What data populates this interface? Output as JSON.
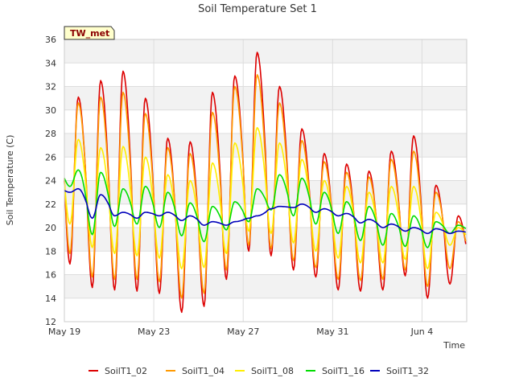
{
  "chart_data": {
    "type": "line",
    "title": "Soil Temperature Set 1",
    "site_tag": "TW_met",
    "xlabel": "Time",
    "ylabel": "Soil Temperature (C)",
    "ylim": [
      12,
      36
    ],
    "y_ticks": [
      12,
      14,
      16,
      18,
      20,
      22,
      24,
      26,
      28,
      30,
      32,
      34,
      36
    ],
    "xlim": [
      "2024-05-19",
      "2024-06-06"
    ],
    "x_ticks": [
      {
        "date": "2024-05-19",
        "label": "May 19"
      },
      {
        "date": "2024-05-23",
        "label": "May 23"
      },
      {
        "date": "2024-05-27",
        "label": "May 27"
      },
      {
        "date": "2024-05-31",
        "label": "May 31"
      },
      {
        "date": "2024-06-04",
        "label": "Jun 4"
      }
    ],
    "grid": true,
    "legend_position": "bottom",
    "days": [
      "2024-05-19",
      "2024-05-20",
      "2024-05-21",
      "2024-05-22",
      "2024-05-23",
      "2024-05-24",
      "2024-05-25",
      "2024-05-26",
      "2024-05-27",
      "2024-05-28",
      "2024-05-29",
      "2024-05-30",
      "2024-05-31",
      "2024-06-01",
      "2024-06-02",
      "2024-06-03",
      "2024-06-04",
      "2024-06-05"
    ],
    "series": [
      {
        "name": "SoilT1_02",
        "color": "#dd0000",
        "daily_max": [
          31.1,
          32.5,
          33.3,
          31.0,
          27.6,
          27.3,
          31.5,
          32.9,
          34.9,
          32.0,
          28.4,
          26.3,
          25.4,
          24.8,
          26.5,
          27.8,
          23.6,
          21.0
        ],
        "daily_min": [
          16.9,
          14.9,
          14.7,
          14.6,
          14.4,
          12.8,
          13.3,
          15.6,
          18.0,
          17.6,
          16.4,
          15.8,
          14.7,
          14.6,
          14.7,
          15.9,
          14.0,
          15.2
        ]
      },
      {
        "name": "SoilT1_04",
        "color": "#ff9900",
        "daily_max": [
          30.6,
          31.1,
          31.5,
          29.7,
          26.8,
          26.3,
          29.8,
          32.0,
          33.0,
          30.6,
          27.4,
          25.6,
          24.7,
          24.3,
          25.8,
          26.5,
          23.0,
          20.5
        ],
        "daily_min": [
          17.8,
          15.8,
          15.6,
          15.6,
          15.4,
          14.0,
          14.4,
          16.4,
          18.5,
          18.2,
          17.2,
          16.6,
          15.6,
          15.5,
          15.6,
          16.4,
          15.0,
          16.5
        ]
      },
      {
        "name": "SoilT1_08",
        "color": "#ffee00",
        "daily_max": [
          27.5,
          26.8,
          26.9,
          26.0,
          24.5,
          24.0,
          25.5,
          27.2,
          28.5,
          27.2,
          25.8,
          24.0,
          23.5,
          23.0,
          23.5,
          23.5,
          21.3,
          20.0
        ],
        "daily_min": [
          20.3,
          18.3,
          17.8,
          17.6,
          17.4,
          16.5,
          16.6,
          17.8,
          19.7,
          19.5,
          18.7,
          18.0,
          17.4,
          17.0,
          17.0,
          17.3,
          16.5,
          18.5
        ]
      },
      {
        "name": "SoilT1_16",
        "color": "#00dd00",
        "daily_max": [
          24.9,
          24.7,
          23.3,
          23.5,
          23.0,
          22.1,
          21.8,
          22.2,
          23.3,
          24.5,
          24.2,
          23.0,
          22.2,
          21.8,
          21.2,
          21.0,
          20.5,
          20.2
        ],
        "daily_min": [
          23.5,
          19.4,
          20.1,
          20.3,
          20.0,
          19.3,
          18.8,
          19.8,
          20.5,
          21.5,
          21.0,
          20.3,
          19.5,
          18.9,
          18.5,
          18.4,
          18.3,
          19.5
        ]
      },
      {
        "name": "SoilT1_32",
        "color": "#0000bb",
        "daily_max": [
          23.3,
          22.8,
          21.3,
          21.3,
          21.3,
          21.0,
          20.5,
          20.5,
          21.0,
          21.8,
          22.0,
          21.6,
          21.2,
          20.7,
          20.3,
          20.0,
          19.9,
          19.7
        ],
        "daily_min": [
          23.0,
          20.8,
          21.0,
          20.8,
          21.0,
          20.6,
          20.2,
          20.2,
          20.8,
          21.6,
          21.7,
          21.3,
          21.0,
          20.4,
          20.0,
          19.7,
          19.5,
          19.5
        ]
      }
    ]
  }
}
